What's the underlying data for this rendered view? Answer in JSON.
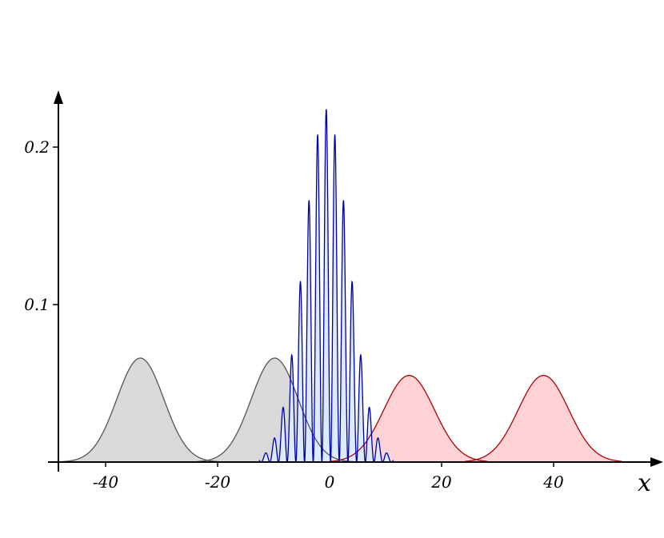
{
  "chart_data": {
    "type": "area",
    "xlabel": "x",
    "ylabel": "",
    "xlim": [
      -48,
      58
    ],
    "ylim": [
      0,
      0.235
    ],
    "x_ticks": [
      {
        "value": -40,
        "label": "-40"
      },
      {
        "value": -20,
        "label": "-20"
      },
      {
        "value": 20,
        "label": "20"
      },
      {
        "value": 40,
        "label": "40"
      }
    ],
    "y_ticks": [
      {
        "value": 0.1,
        "label": "0.1"
      },
      {
        "value": 0.2,
        "label": "0.2"
      }
    ],
    "center_label": {
      "value": 0,
      "label": "0"
    },
    "series": [
      {
        "color": "#555555",
        "fill": "#d9d9d9",
        "kind": "gaussian",
        "center": -33.8,
        "peak": 0.066,
        "sigma": 4.2
      },
      {
        "color": "#555555",
        "fill": "#d9d9d9",
        "kind": "gaussian",
        "center": -9.8,
        "peak": 0.066,
        "sigma": 4.2
      },
      {
        "color": "#b00000",
        "fill": "#ffd2d6",
        "kind": "gaussian",
        "center": 14.2,
        "peak": 0.055,
        "sigma": 4.5
      },
      {
        "color": "#b00000",
        "fill": "#ffd2d6",
        "kind": "gaussian",
        "center": 38.2,
        "peak": 0.055,
        "sigma": 4.5
      },
      {
        "color": "#0000aa",
        "fill": "#dbeafc",
        "kind": "interference",
        "center": -0.6,
        "peak": 0.224,
        "sigma": 4.0,
        "fringe_period": 1.55
      }
    ]
  }
}
